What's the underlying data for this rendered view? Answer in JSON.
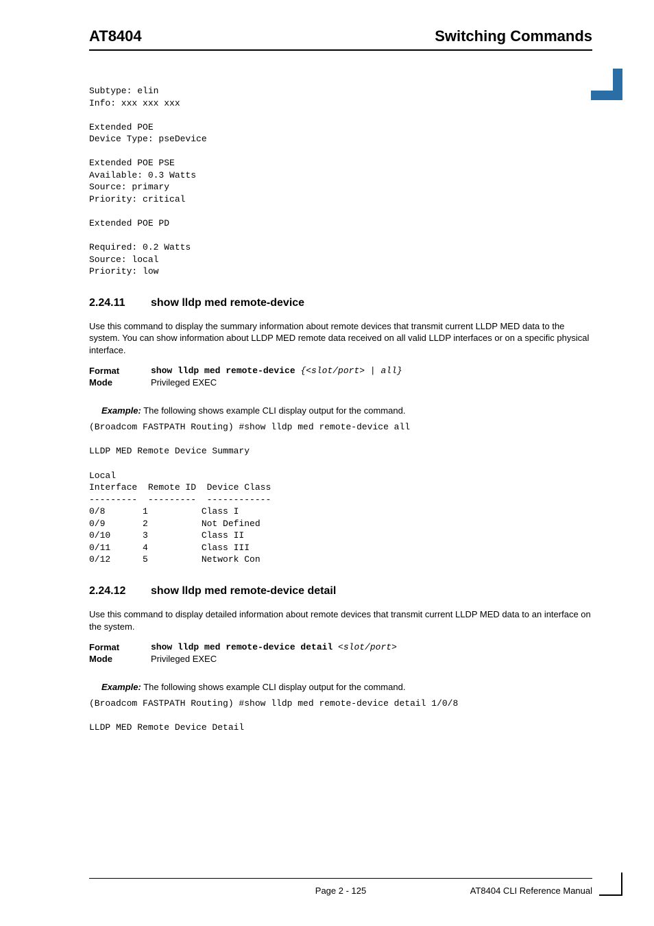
{
  "header": {
    "left": "AT8404",
    "right": "Switching Commands"
  },
  "topCodeBlock": "Subtype: elin\nInfo: xxx xxx xxx\n\nExtended POE\nDevice Type: pseDevice\n\nExtended POE PSE\nAvailable: 0.3 Watts\nSource: primary\nPriority: critical\n\nExtended POE PD\n\nRequired: 0.2 Watts\nSource: local\nPriority: low",
  "section1": {
    "num": "2.24.11",
    "title": "show lldp med remote-device",
    "para": "Use this command to display the summary information about remote devices that transmit current LLDP MED data to the system. You can show information about LLDP MED remote data received on all valid LLDP interfaces or on a specific physical interface.",
    "formatLabel": "Format",
    "formatCmdBold": "show lldp med remote-device",
    "formatCmdItalic": " {<slot/port> | all}",
    "modeLabel": "Mode",
    "modeValue": "Privileged EXEC",
    "exampleLabel": "Example:",
    "exampleText": " The following shows example CLI display output for the command.",
    "exampleBlock": "(Broadcom FASTPATH Routing) #show lldp med remote-device all\n\nLLDP MED Remote Device Summary\n\nLocal\nInterface  Remote ID  Device Class\n---------  ---------  ------------\n0/8       1          Class I\n0/9       2          Not Defined\n0/10      3          Class II\n0/11      4          Class III\n0/12      5          Network Con"
  },
  "section2": {
    "num": "2.24.12",
    "title": "show lldp med remote-device detail",
    "para": "Use this command to display detailed information about remote devices that transmit current LLDP MED data to an interface on the system.",
    "formatLabel": "Format",
    "formatCmdBold": "show lldp med remote-device detail",
    "formatCmdItalic": " <slot/port>",
    "modeLabel": "Mode",
    "modeValue": "Privileged EXEC",
    "exampleLabel": "Example:",
    "exampleText": " The following shows example CLI display output for the command.",
    "exampleBlock": "(Broadcom FASTPATH Routing) #show lldp med remote-device detail 1/0/8\n\nLLDP MED Remote Device Detail"
  },
  "footer": {
    "center": "Page 2 - 125",
    "right": "AT8404 CLI Reference Manual"
  },
  "colors": {
    "badge": "#2a6ea5",
    "text": "#000000",
    "background": "#ffffff"
  }
}
